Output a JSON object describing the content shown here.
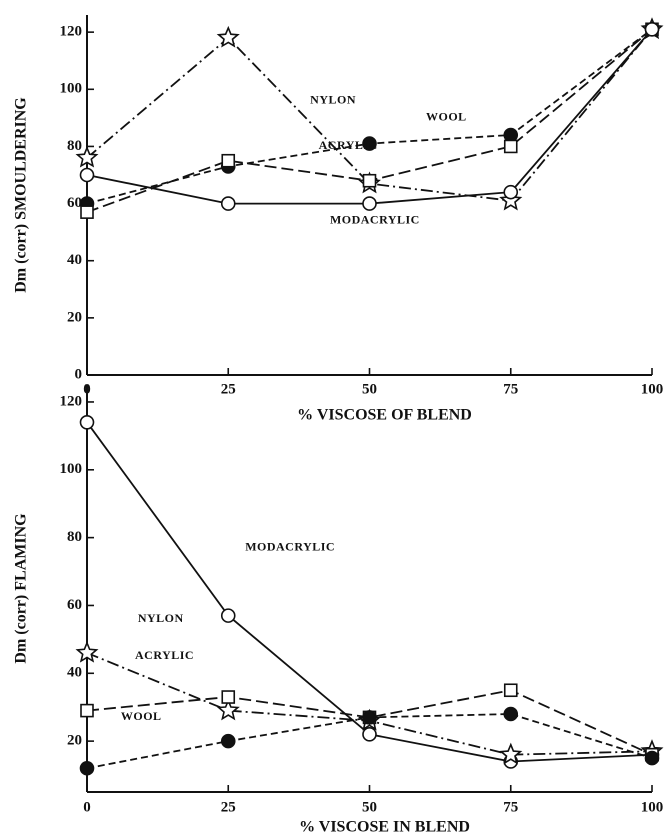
{
  "chart_data": [
    {
      "type": "line",
      "xlabel": "% VISCOSE OF BLEND",
      "ylabel": "Dm (corr) SMOULDERING",
      "x": [
        0,
        25,
        50,
        75,
        100
      ],
      "xlim": [
        0,
        100
      ],
      "xticks": [
        0,
        25,
        50,
        75,
        100
      ],
      "ylim": [
        0,
        126
      ],
      "yticks": [
        0,
        20,
        40,
        60,
        80,
        100,
        120
      ],
      "series": [
        {
          "name": "NYLON",
          "color": "#111111",
          "marker": "star",
          "dash": "dashdot",
          "values": [
            76,
            118,
            67,
            61,
            121
          ]
        },
        {
          "name": "WOOL",
          "color": "#111111",
          "marker": "filled-circle",
          "dash": "dashed",
          "values": [
            60,
            73,
            81,
            84,
            121
          ]
        },
        {
          "name": "ACRYLIC",
          "color": "#111111",
          "marker": "square",
          "dash": "longdash",
          "values": [
            57,
            75,
            68,
            80,
            121
          ]
        },
        {
          "name": "MODACRYLIC",
          "color": "#111111",
          "marker": "open-circle",
          "dash": "solid",
          "values": [
            70,
            60,
            60,
            64,
            121
          ]
        }
      ]
    },
    {
      "type": "line",
      "xlabel": "% VISCOSE IN BLEND",
      "ylabel": "Dm (corr) FLAMING",
      "x": [
        0,
        25,
        50,
        75,
        100
      ],
      "xlim": [
        0,
        100
      ],
      "xticks": [
        0,
        25,
        50,
        75,
        100
      ],
      "ylim": [
        5,
        125
      ],
      "yticks": [
        20,
        40,
        60,
        80,
        100,
        120
      ],
      "series": [
        {
          "name": "MODACRYLIC",
          "color": "#111111",
          "marker": "open-circle",
          "dash": "solid",
          "values": [
            114,
            57,
            22,
            14,
            16
          ]
        },
        {
          "name": "NYLON",
          "color": "#111111",
          "marker": "star",
          "dash": "dashdot",
          "values": [
            46,
            29,
            26,
            16,
            17
          ]
        },
        {
          "name": "ACRYLIC",
          "color": "#111111",
          "marker": "square",
          "dash": "longdash",
          "values": [
            29,
            33,
            27,
            35,
            16
          ]
        },
        {
          "name": "WOOL",
          "color": "#111111",
          "marker": "filled-circle",
          "dash": "dashed",
          "values": [
            12,
            20,
            27,
            28,
            15
          ]
        }
      ]
    }
  ]
}
